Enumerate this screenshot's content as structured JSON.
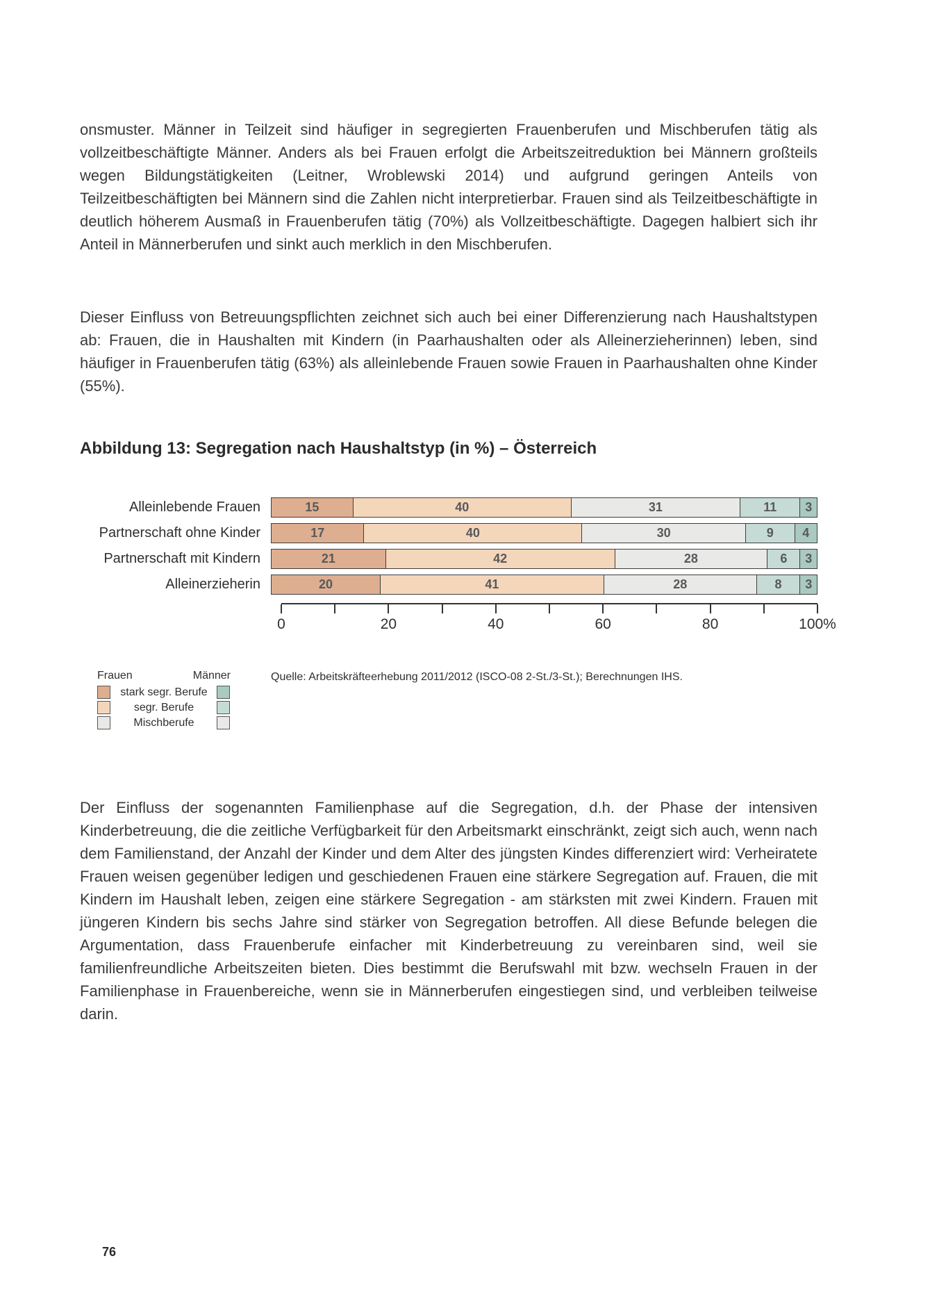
{
  "page": {
    "paragraphs": [
      "onsmuster. Männer in Teilzeit sind häufiger in segregierten Frauenberufen und Mischberufen tätig als vollzeitbeschäftigte Männer. Anders als bei Frauen erfolgt die Arbeitszeitreduktion bei Männern großteils wegen Bildungstätigkeiten (Leitner, Wroblewski 2014) und aufgrund geringen Anteils von Teilzeitbeschäftigten bei Männern sind die Zahlen nicht interpretierbar. Frauen sind als Teilzeitbeschäftigte in deutlich höherem Ausmaß in Frauenberufen tätig (70%) als Vollzeitbeschäftigte. Dagegen halbiert sich ihr Anteil in Männerberufen und sinkt auch merklich in den Mischberufen.",
      "Dieser Einfluss von Betreuungspflichten zeichnet sich auch bei einer Differenzierung nach Haushaltstypen ab: Frauen, die in Haushalten mit Kindern (in Paarhaushalten oder als Alleinerzieherinnen) leben, sind häufiger in Frauenberufen tätig (63%) als alleinlebende Frauen sowie Frauen in Paarhaushalten ohne Kinder (55%).",
      "Der Einfluss der sogenannten Familienphase auf die Segregation, d.h. der Phase der intensiven Kinderbetreuung, die die zeitliche Verfügbarkeit für den Arbeitsmarkt einschränkt, zeigt sich auch, wenn nach dem Familienstand, der Anzahl der Kinder und dem Alter des jüngsten Kindes differenziert wird: Verheiratete Frauen weisen gegenüber ledigen und geschiedenen Frauen eine stärkere Segregation auf. Frauen, die mit Kindern im Haushalt leben, zeigen eine stärkere Segregation - am stärksten mit zwei Kindern. Frauen mit jüngeren Kindern bis sechs Jahre sind stärker von Segregation betroffen. All diese Befunde belegen die Argumentation, dass Frauenberufe einfacher mit Kinderbetreuung zu vereinbaren sind, weil sie familienfreundliche Arbeitszeiten bieten. Dies bestimmt die Berufswahl mit bzw. wechseln Frauen in der Familienphase in Frauenbereiche, wenn sie in Männerberufen eingestiegen sind, und verbleiben teilweise darin."
    ],
    "page_number": "76"
  },
  "figure": {
    "title": "Abbildung 13: Segregation nach Haushaltstyp (in %) – Österreich",
    "source": "Quelle: Arbeitskräfteerhebung 2011/2012 (ISCO-08 2-St./3-St.); Berechnungen IHS."
  },
  "chart_data": {
    "type": "bar",
    "orientation": "horizontal-stacked",
    "title": "Abbildung 13: Segregation nach Haushaltstyp (in %) – Österreich",
    "categories": [
      "Alleinlebende Frauen",
      "Partnerschaft ohne Kinder",
      "Partnerschaft mit Kindern",
      "Alleinerzieherin"
    ],
    "series": [
      {
        "name": "Frauen stark segr. Berufe",
        "color": "#deae90",
        "values": [
          15,
          17,
          21,
          20
        ]
      },
      {
        "name": "Frauen segr. Berufe",
        "color": "#f4d6bb",
        "values": [
          40,
          40,
          42,
          41
        ]
      },
      {
        "name": "Mischberufe",
        "color": "#e9eae7",
        "values": [
          31,
          30,
          28,
          28
        ]
      },
      {
        "name": "Männer segr. Berufe",
        "color": "#c6dbd5",
        "values": [
          11,
          9,
          6,
          8
        ]
      },
      {
        "name": "Männer stark segr. Berufe",
        "color": "#a9c9c1",
        "values": [
          3,
          4,
          3,
          3
        ]
      }
    ],
    "x_axis": {
      "range": [
        0,
        100
      ],
      "minor_tick_step": 10,
      "tick_labels": [
        "0",
        "20",
        "40",
        "60",
        "80",
        "100%"
      ],
      "tick_label_step": 20
    },
    "legend": {
      "column_headers": [
        "Frauen",
        "Männer"
      ],
      "row_labels": [
        "stark segr. Berufe",
        "segr. Berufe",
        "Mischberufe"
      ],
      "frauen_colors": [
        "#deae90",
        "#f4d6bb",
        "#e9eae7"
      ],
      "maenner_colors": [
        "#a9c9c1",
        "#c6dbd5",
        "#e9eae7"
      ]
    }
  }
}
